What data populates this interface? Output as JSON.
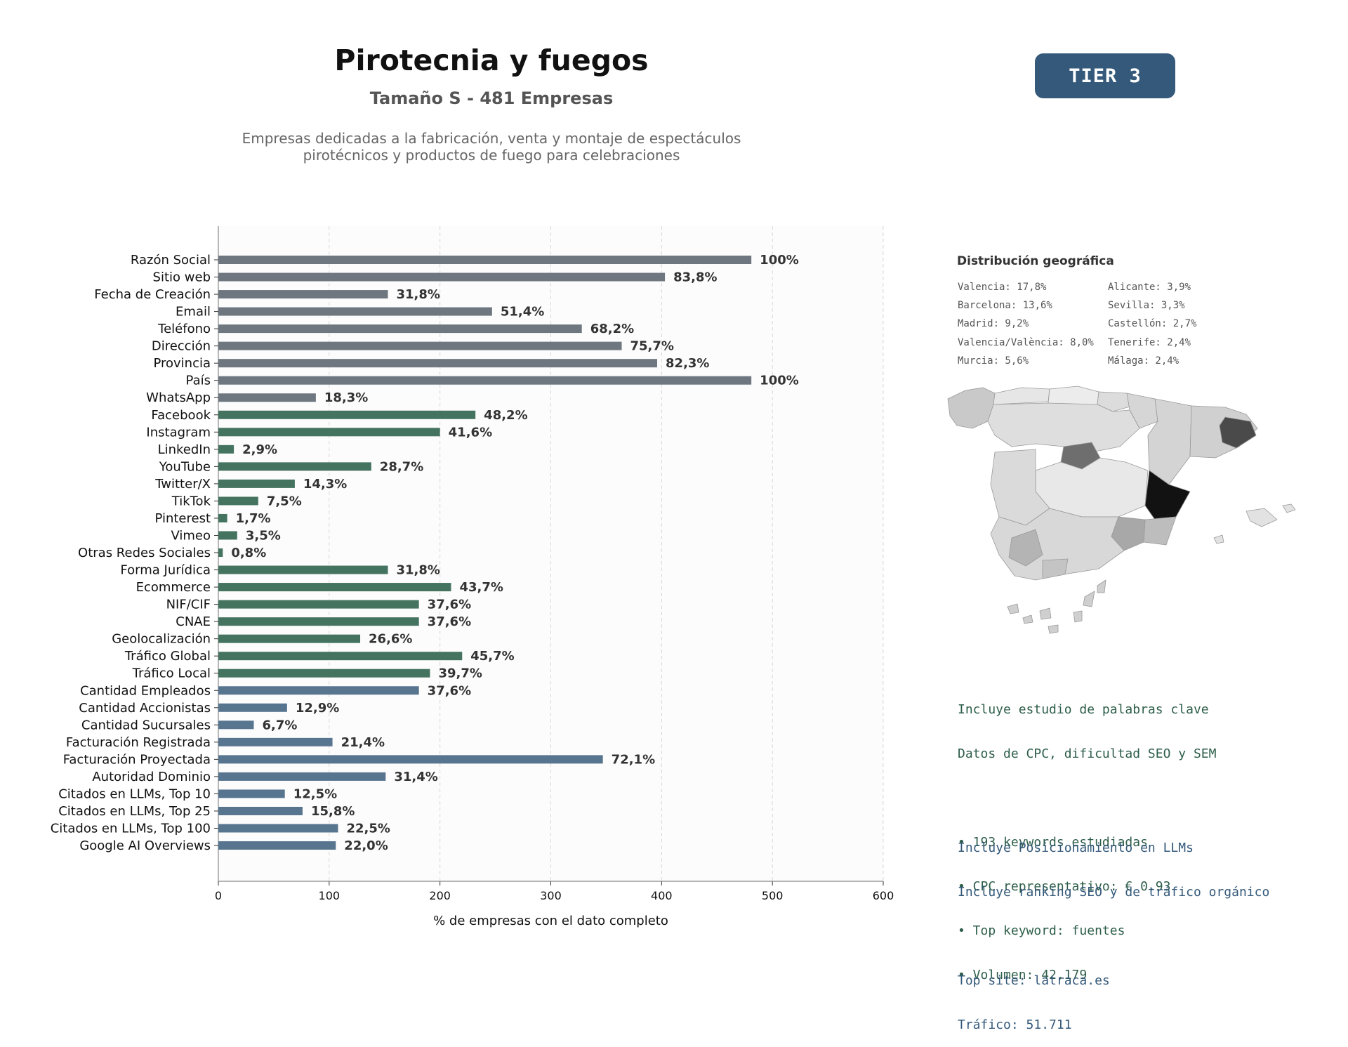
{
  "header": {
    "title": "Pirotecnia y fuegos",
    "subtitle": "Tamaño S - 481 Empresas",
    "description_lines": [
      "Empresas dedicadas a la fabricación, venta y montaje de espectáculos",
      "pirotécnicos y productos de fuego para celebraciones"
    ],
    "tier": "TIER 3"
  },
  "colors": {
    "gray": "#6e7780",
    "green": "#44735f",
    "blue": "#587590",
    "badge": "#34597a"
  },
  "chart_data": {
    "type": "bar",
    "orientation": "horizontal",
    "xlabel": "% de empresas con el dato completo",
    "xlim": [
      0,
      600
    ],
    "xticks": [
      0,
      100,
      200,
      300,
      400,
      500,
      600
    ],
    "grid": "vertical dashed",
    "categories": [
      "Razón Social",
      "Sitio web",
      "Fecha de Creación",
      "Email",
      "Teléfono",
      "Dirección",
      "Provincia",
      "País",
      "WhatsApp",
      "Facebook",
      "Instagram",
      "LinkedIn",
      "YouTube",
      "Twitter/X",
      "TikTok",
      "Pinterest",
      "Vimeo",
      "Otras Redes Sociales",
      "Forma Jurídica",
      "Ecommerce",
      "NIF/CIF",
      "CNAE",
      "Geolocalización",
      "Tráfico Global",
      "Tráfico Local",
      "Cantidad Empleados",
      "Cantidad Accionistas",
      "Cantidad Sucursales",
      "Facturación Registrada",
      "Facturación Proyectada",
      "Autoridad Dominio",
      "Citados en LLMs, Top 10",
      "Citados en LLMs, Top 25",
      "Citados en LLMs, Top 100",
      "Google AI Overviews"
    ],
    "values": [
      481,
      403,
      153,
      247,
      328,
      364,
      396,
      481,
      88,
      232,
      200,
      14,
      138,
      69,
      36,
      8,
      17,
      4,
      153,
      210,
      181,
      181,
      128,
      220,
      191,
      181,
      62,
      32,
      103,
      347,
      151,
      60,
      76,
      108,
      106
    ],
    "labels": [
      "100%",
      "83,8%",
      "31,8%",
      "51,4%",
      "68,2%",
      "75,7%",
      "82,3%",
      "100%",
      "18,3%",
      "48,2%",
      "41,6%",
      "2,9%",
      "28,7%",
      "14,3%",
      "7,5%",
      "1,7%",
      "3,5%",
      "0,8%",
      "31,8%",
      "43,7%",
      "37,6%",
      "37,6%",
      "26,6%",
      "45,7%",
      "39,7%",
      "37,6%",
      "12,9%",
      "6,7%",
      "21,4%",
      "72,1%",
      "31,4%",
      "12,5%",
      "15,8%",
      "22,5%",
      "22,0%"
    ],
    "groups": [
      "gray",
      "gray",
      "gray",
      "gray",
      "gray",
      "gray",
      "gray",
      "gray",
      "gray",
      "green",
      "green",
      "green",
      "green",
      "green",
      "green",
      "green",
      "green",
      "green",
      "green",
      "green",
      "green",
      "green",
      "green",
      "green",
      "green",
      "blue",
      "blue",
      "blue",
      "blue",
      "blue",
      "blue",
      "blue",
      "blue",
      "blue",
      "blue"
    ]
  },
  "geo": {
    "title": "Distribución geográfica",
    "left": [
      "Valencia: 17,8%",
      "Barcelona: 13,6%",
      "Madrid: 9,2%",
      "Valencia/València: 8,0%",
      "Murcia: 5,6%"
    ],
    "right": [
      "Alicante: 3,9%",
      "Sevilla: 3,3%",
      "Castellón: 2,7%",
      "Tenerife: 2,4%",
      "Málaga: 2,4%"
    ]
  },
  "seo": {
    "lines": [
      "Incluye estudio de palabras clave",
      "Datos de CPC, dificultad SEO y SEM"
    ],
    "bullets": [
      "• 193 keywords estudiadas",
      "• CPC representativo: € 0.93",
      "• Top keyword: fuentes",
      "• Volumen: 42.179"
    ]
  },
  "llm": {
    "lines": [
      "Incluye Posicionamiento en LLMs",
      "Incluye ranking SEO y de tráfico orgánico"
    ],
    "top_site": "Top site: latraca.es",
    "traffic": "Tráfico: 51.711"
  }
}
